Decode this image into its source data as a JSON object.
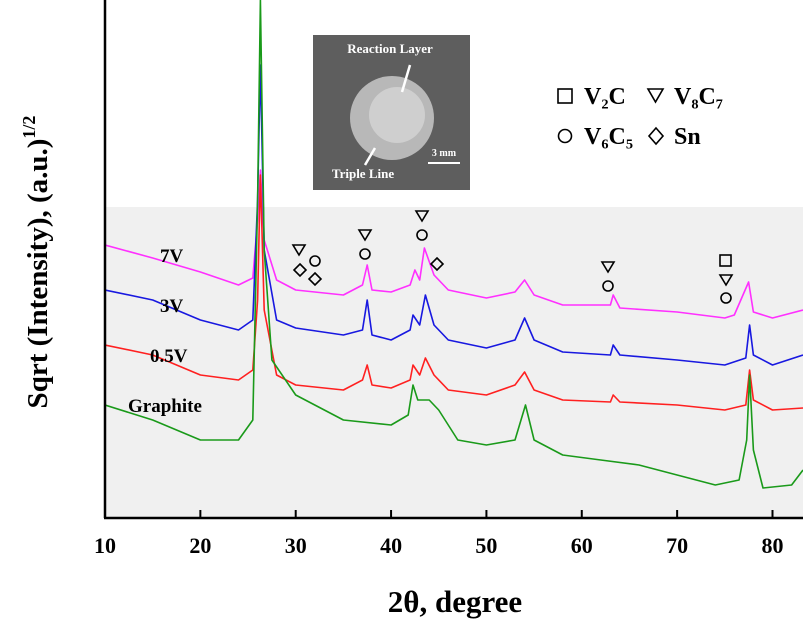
{
  "chart_data": {
    "type": "line",
    "x_label": "2θ, degree",
    "y_label": "Sqrt (Intensity), (a.u.)",
    "y_label_superscript": "1/2",
    "xlim": [
      10,
      83.2
    ],
    "xticks": [
      10,
      20,
      30,
      40,
      50,
      60,
      70,
      80
    ],
    "ylim": [
      0,
      518
    ],
    "series": [
      {
        "name": "7V",
        "color": "#ff30ff",
        "x": [
          10,
          15,
          20,
          24,
          25.5,
          26,
          26.3,
          26.7,
          28,
          30,
          35,
          37,
          37.5,
          38,
          40,
          42,
          42.5,
          43,
          43.5,
          44.5,
          46,
          50,
          53,
          54,
          55,
          58,
          63,
          63.3,
          64,
          70,
          75,
          76,
          77.5,
          78,
          80,
          83.2
        ],
        "values": [
          273,
          260,
          246,
          233,
          240,
          298,
          348,
          278,
          238,
          228,
          223,
          233,
          253,
          228,
          226,
          233,
          248,
          238,
          270,
          243,
          228,
          220,
          226,
          238,
          223,
          213,
          213,
          223,
          210,
          206,
          200,
          203,
          236,
          206,
          200,
          208
        ]
      },
      {
        "name": "3V",
        "color": "#1818e0",
        "x": [
          10,
          15,
          20,
          24,
          25.5,
          26,
          26.3,
          26.7,
          28,
          30,
          35,
          37,
          37.5,
          38,
          40,
          42,
          42.3,
          43,
          43.6,
          44.5,
          46,
          50,
          53,
          54,
          55,
          58,
          63,
          63.3,
          64,
          70,
          75,
          77.2,
          77.6,
          78,
          80,
          83.2
        ],
        "values": [
          228,
          218,
          198,
          188,
          198,
          318,
          453,
          268,
          198,
          190,
          183,
          188,
          218,
          183,
          178,
          188,
          203,
          193,
          223,
          193,
          178,
          170,
          178,
          200,
          178,
          166,
          163,
          173,
          163,
          158,
          153,
          160,
          193,
          163,
          153,
          163
        ]
      },
      {
        "name": "0.5V",
        "color": "#ff2020",
        "x": [
          10,
          15,
          20,
          24,
          25.5,
          26,
          26.3,
          26.7,
          28,
          30,
          35,
          37,
          37.5,
          38,
          40,
          42,
          42.3,
          43,
          43.6,
          44.5,
          46,
          50,
          53,
          54,
          55,
          58,
          63,
          63.3,
          64,
          70,
          75,
          77.2,
          77.6,
          78,
          80,
          83.2
        ],
        "values": [
          173,
          163,
          143,
          138,
          148,
          218,
          343,
          208,
          143,
          133,
          128,
          138,
          153,
          133,
          130,
          138,
          153,
          143,
          160,
          143,
          128,
          123,
          133,
          146,
          128,
          118,
          116,
          123,
          116,
          113,
          108,
          113,
          148,
          118,
          108,
          110
        ]
      },
      {
        "name": "Graphite",
        "color": "#1a9a1a",
        "x": [
          10,
          15,
          20,
          24,
          25.5,
          26,
          26.3,
          26.7,
          27.5,
          30,
          35,
          40,
          41.8,
          42.3,
          42.8,
          44,
          45,
          47,
          50,
          53,
          54.1,
          55,
          58,
          62,
          66,
          70,
          74,
          76.5,
          77.3,
          77.6,
          78,
          79,
          82,
          83.2
        ],
        "values": [
          113,
          98,
          78,
          78,
          98,
          318,
          518,
          268,
          158,
          123,
          98,
          93,
          103,
          133,
          118,
          118,
          108,
          78,
          73,
          78,
          113,
          78,
          63,
          58,
          53,
          43,
          33,
          38,
          78,
          143,
          68,
          30,
          33,
          48
        ]
      }
    ],
    "phase_legend": [
      "V₂C",
      "V₈C₇",
      "V₆C₅",
      "Sn"
    ],
    "inset": {
      "labels": [
        "Reaction Layer",
        "Triple Line",
        "3 mm"
      ]
    }
  }
}
